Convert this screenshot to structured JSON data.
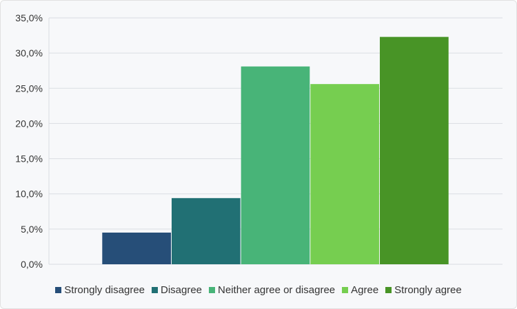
{
  "chart_data": {
    "type": "bar",
    "title": "",
    "xlabel": "",
    "ylabel": "",
    "ylim": [
      0,
      35
    ],
    "yticks": [
      0,
      5,
      10,
      15,
      20,
      25,
      30,
      35
    ],
    "ytick_labels": [
      "0,0%",
      "5,0%",
      "10,0%",
      "15,0%",
      "20,0%",
      "25,0%",
      "30,0%",
      "35,0%"
    ],
    "grid": true,
    "legend_position": "bottom",
    "series": [
      {
        "name": "Strongly disagree",
        "value": 4.5,
        "color": "#264e78"
      },
      {
        "name": "Disagree",
        "value": 9.4,
        "color": "#217074"
      },
      {
        "name": "Neither agree or disagree",
        "value": 28.1,
        "color": "#48b478"
      },
      {
        "name": "Agree",
        "value": 25.6,
        "color": "#76ce50"
      },
      {
        "name": "Strongly agree",
        "value": 32.3,
        "color": "#489426"
      }
    ]
  }
}
